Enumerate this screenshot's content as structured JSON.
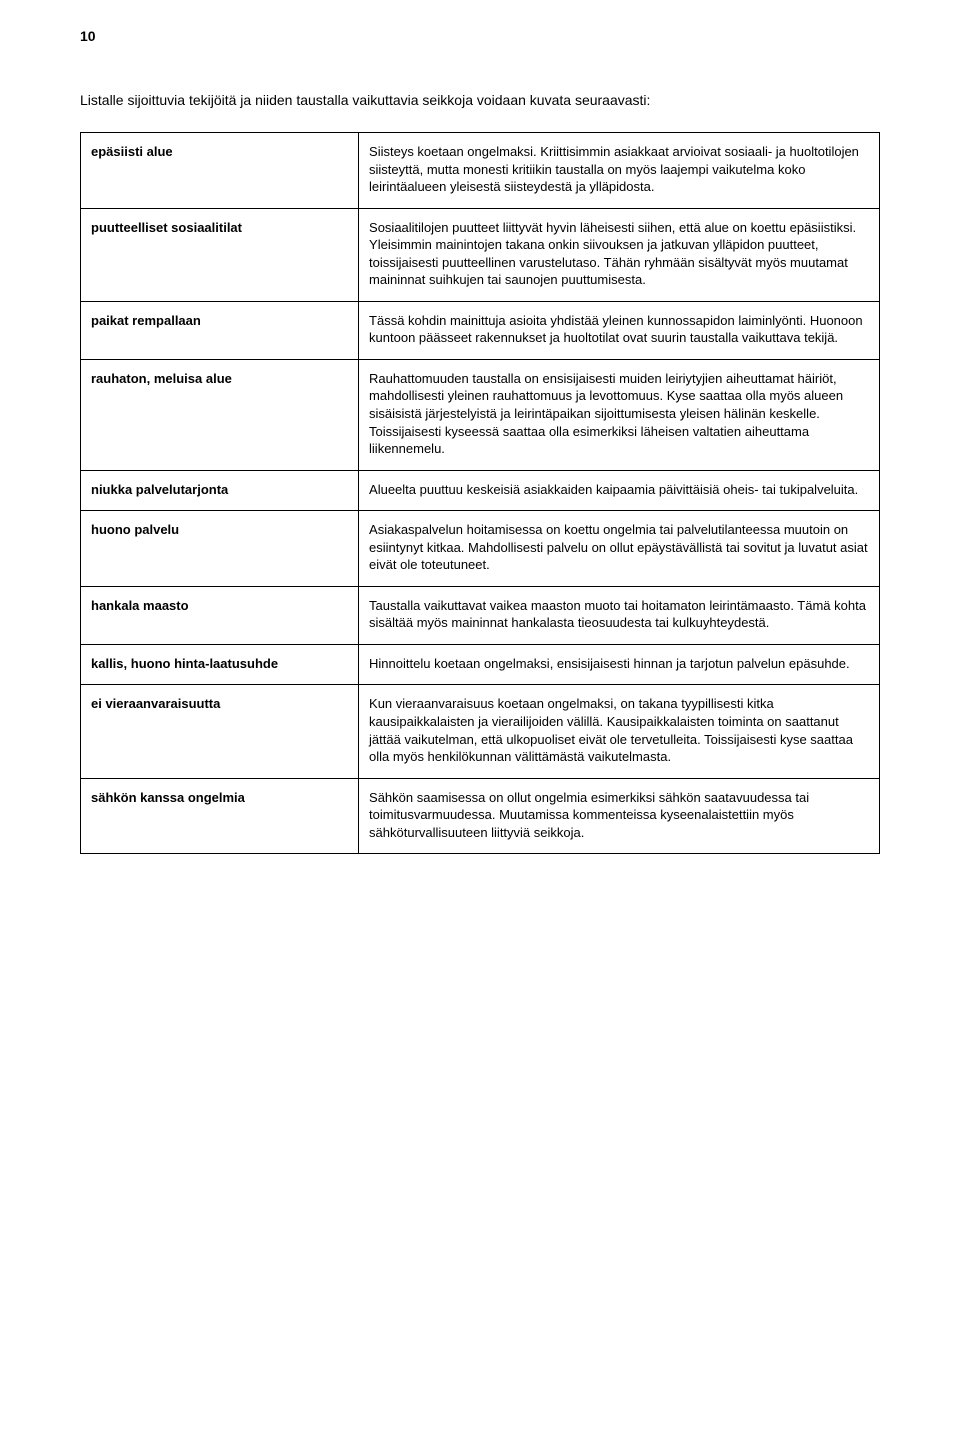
{
  "page_number": "10",
  "intro": "Listalle sijoittuvia tekijöitä ja niiden taustalla vaikuttavia seikkoja voidaan kuvata seuraavasti:",
  "rows": [
    {
      "term": "epäsiisti alue",
      "desc": "Siisteys koetaan ongelmaksi. Kriittisimmin asiakkaat arvioivat sosiaali- ja huoltotilojen siisteyttä, mutta monesti kritiikin taustalla on myös laajempi vaikutelma koko leirintäalueen yleisestä siisteydestä ja ylläpidosta."
    },
    {
      "term": "puutteelliset sosiaalitilat",
      "desc": "Sosiaalitilojen puutteet liittyvät hyvin läheisesti siihen, että alue on koettu epäsiistiksi. Yleisimmin mainintojen takana onkin siivouksen ja jatkuvan ylläpidon puutteet, toissijaisesti puutteellinen varustelutaso. Tähän ryhmään sisältyvät myös muutamat maininnat suihkujen tai saunojen puuttumisesta."
    },
    {
      "term": "paikat rempallaan",
      "desc": "Tässä kohdin mainittuja asioita yhdistää yleinen kunnossapidon laiminlyönti. Huonoon kuntoon päässeet rakennukset ja huoltotilat ovat suurin taustalla vaikuttava tekijä."
    },
    {
      "term": "rauhaton, meluisa alue",
      "desc": "Rauhattomuuden taustalla on ensisijaisesti muiden leiriytyjien aiheuttamat häiriöt, mahdollisesti yleinen rauhattomuus ja levottomuus. Kyse saattaa olla myös alueen sisäisistä järjestelyistä ja leirintäpaikan sijoittumisesta yleisen hälinän keskelle. Toissijaisesti kyseessä saattaa olla esimerkiksi läheisen valtatien aiheuttama liikennemelu."
    },
    {
      "term": "niukka palvelutarjonta",
      "desc": "Alueelta puuttuu keskeisiä asiakkaiden kaipaamia päivittäisiä oheis- tai tukipalveluita."
    },
    {
      "term": "huono palvelu",
      "desc": "Asiakaspalvelun hoitamisessa on koettu ongelmia tai palvelutilanteessa muutoin on esiintynyt kitkaa. Mahdollisesti palvelu on ollut epäystävällistä tai sovitut ja luvatut asiat eivät ole toteutuneet."
    },
    {
      "term": "hankala maasto",
      "desc": "Taustalla vaikuttavat vaikea maaston muoto tai hoitamaton leirintämaasto. Tämä kohta sisältää myös maininnat hankalasta tieosuudesta tai kulkuyhteydestä."
    },
    {
      "term": "kallis, huono hinta-laatusuhde",
      "desc": "Hinnoittelu koetaan ongelmaksi, ensisijaisesti hinnan ja tarjotun palvelun epäsuhde."
    },
    {
      "term": "ei vieraanvaraisuutta",
      "desc": "Kun vieraanvaraisuus koetaan ongelmaksi, on takana tyypillisesti kitka kausipaikkalaisten ja vierailijoiden välillä. Kausipaikkalaisten toiminta on saattanut jättää vaikutelman, että ulkopuoliset eivät ole tervetulleita. Toissijaisesti kyse saattaa olla myös henkilökunnan välittämästä vaikutelmasta."
    },
    {
      "term": "sähkön kanssa ongelmia",
      "desc": "Sähkön saamisessa on ollut ongelmia esimerkiksi sähkön saatavuudessa tai toimitusvarmuudessa. Muutamissa kommenteissa kyseenalaistettiin myös sähköturvallisuuteen liittyviä seikkoja."
    }
  ]
}
